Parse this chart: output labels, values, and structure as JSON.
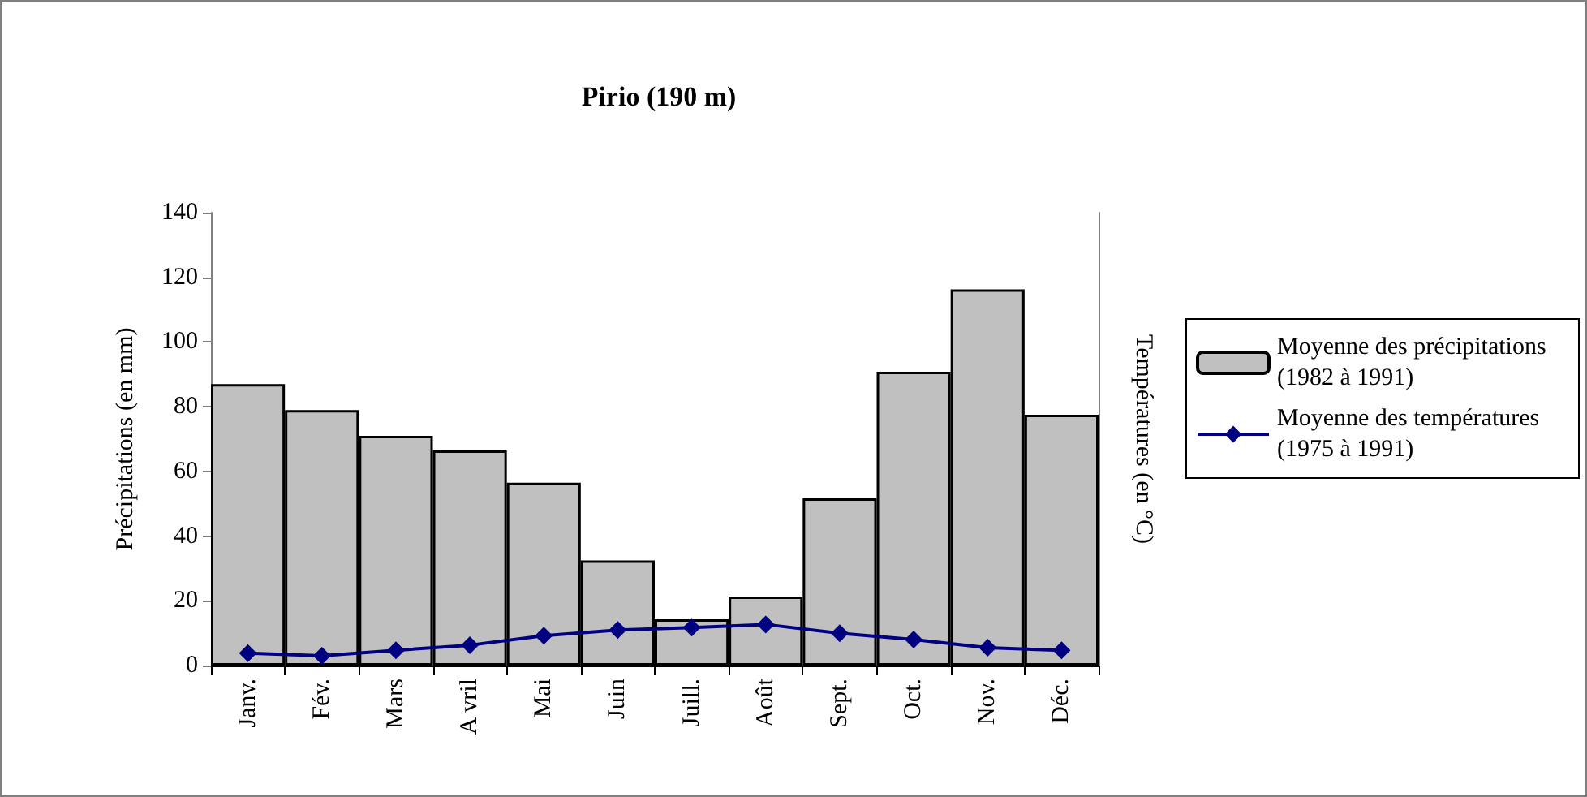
{
  "chart_data": {
    "type": "bar",
    "title": "Pirio (190 m)",
    "categories": [
      "Janv.",
      "Fév.",
      "Mars",
      "A vril",
      "Mai",
      "Juin",
      "Juill.",
      "Août",
      "Sept.",
      "Oct.",
      "Nov.",
      "Déc."
    ],
    "series": [
      {
        "name": "Moyenne des précipitations (1982 à 1991)",
        "color": "#c0c0c0",
        "values": [
          87,
          79,
          71,
          66.5,
          56.5,
          32.5,
          14.3,
          21.3,
          51.7,
          90.8,
          116.3,
          77.5
        ]
      },
      {
        "name": "Moyenne des températures (1975 à 1991)",
        "type": "line",
        "color": "#000080",
        "marker": "diamond",
        "values": [
          3.8,
          3,
          4.7,
          6.3,
          9.2,
          11,
          11.7,
          12.7,
          10,
          8,
          5.5,
          4.7
        ]
      }
    ],
    "ylabel": "Précipitations (en mm)",
    "y2label": "Températures (en °C)",
    "ylim": [
      0,
      140
    ],
    "yticks": [
      0,
      20,
      40,
      60,
      80,
      100,
      120,
      140
    ],
    "grid": false,
    "legend": "right"
  }
}
